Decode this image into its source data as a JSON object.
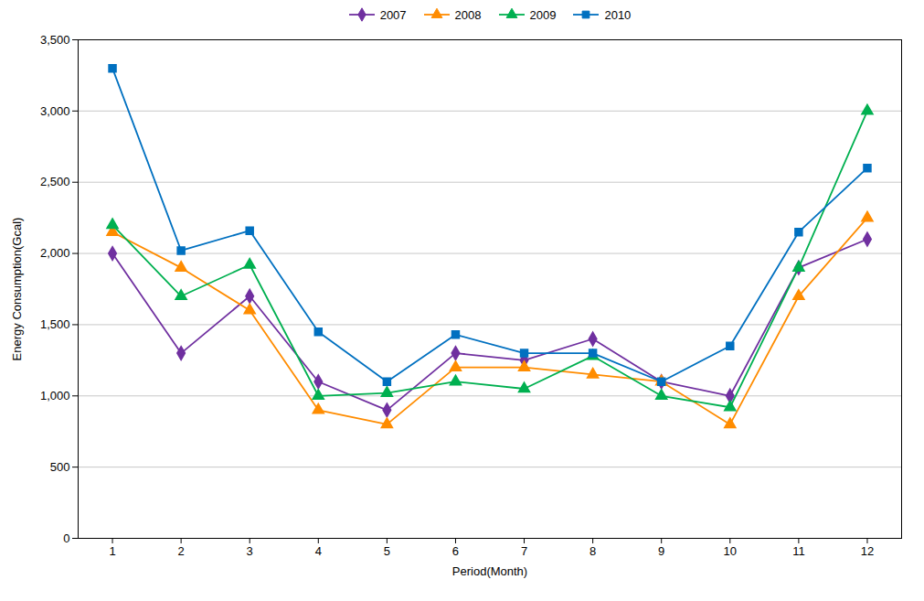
{
  "chart_data": {
    "type": "line",
    "xlabel": "Period(Month)",
    "ylabel": "Energy Consumption(Gcal)",
    "x": [
      1,
      2,
      3,
      4,
      5,
      6,
      7,
      8,
      9,
      10,
      11,
      12
    ],
    "series": [
      {
        "name": "2007",
        "color": "#7030A0",
        "marker": "diamond",
        "line_style": "solid",
        "values": [
          2000,
          1300,
          1700,
          1100,
          900,
          1300,
          1250,
          1400,
          1100,
          1000,
          1900,
          2100
        ]
      },
      {
        "name": "2008",
        "color": "#FF8C00",
        "marker": "triangle",
        "line_style": "solid",
        "values": [
          2150,
          1900,
          1600,
          900,
          800,
          1200,
          1200,
          1150,
          1100,
          800,
          1700,
          2250
        ]
      },
      {
        "name": "2009",
        "color": "#00B050",
        "marker": "triangle",
        "line_style": "solid",
        "values": [
          2200,
          1700,
          1920,
          1000,
          1020,
          1100,
          1050,
          1280,
          1000,
          920,
          1900,
          3000
        ]
      },
      {
        "name": "2010",
        "color": "#0070C0",
        "marker": "square",
        "line_style": "solid",
        "values": [
          3300,
          2020,
          2160,
          1450,
          1100,
          1430,
          1300,
          1300,
          1100,
          1350,
          2150,
          2600
        ]
      }
    ],
    "xlim": [
      0.5,
      12.5
    ],
    "xticks": [
      1,
      2,
      3,
      4,
      5,
      6,
      7,
      8,
      9,
      10,
      11,
      12
    ],
    "ylim": [
      0,
      3500
    ],
    "yticks": [
      0,
      500,
      {
        "value": 1000,
        "label": "1,000"
      },
      {
        "value": 1500,
        "label": "1,500"
      },
      {
        "value": 2000,
        "label": "2,000"
      },
      {
        "value": 2500,
        "label": "2,500"
      },
      {
        "value": 3000,
        "label": "3,000"
      },
      {
        "value": 3500,
        "label": "3,500"
      }
    ],
    "grid": true,
    "legend": "upper center"
  }
}
